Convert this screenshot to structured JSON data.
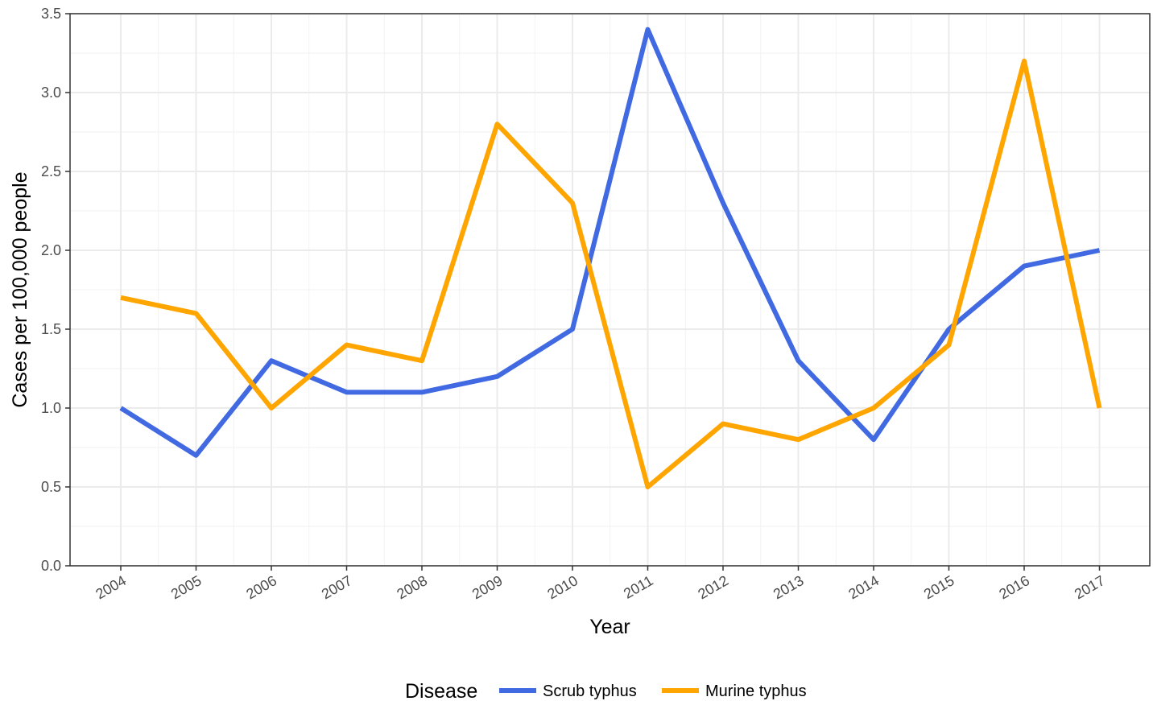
{
  "chart_data": {
    "type": "line",
    "title": "",
    "xlabel": "Year",
    "ylabel": "Cases per 100,000 people",
    "categories": [
      "2004",
      "2005",
      "2006",
      "2007",
      "2008",
      "2009",
      "2010",
      "2011",
      "2012",
      "2013",
      "2014",
      "2015",
      "2016",
      "2017"
    ],
    "ylim": [
      0,
      3.5
    ],
    "yticks": [
      "0.0",
      "0.5",
      "1.0",
      "1.5",
      "2.0",
      "2.5",
      "3.0",
      "3.5"
    ],
    "grid": true,
    "legend": {
      "title": "Disease",
      "placement": "bottom"
    },
    "series": [
      {
        "name": "Scrub typhus",
        "color": "#4169E1",
        "values": [
          1.0,
          0.7,
          1.3,
          1.1,
          1.1,
          1.2,
          1.5,
          3.4,
          2.3,
          1.3,
          0.8,
          1.5,
          1.9,
          2.0
        ]
      },
      {
        "name": "Murine typhus",
        "color": "#FFA500",
        "values": [
          1.7,
          1.6,
          1.0,
          1.4,
          1.3,
          2.8,
          2.3,
          0.5,
          0.9,
          0.8,
          1.0,
          1.4,
          3.2,
          1.0
        ]
      }
    ]
  }
}
